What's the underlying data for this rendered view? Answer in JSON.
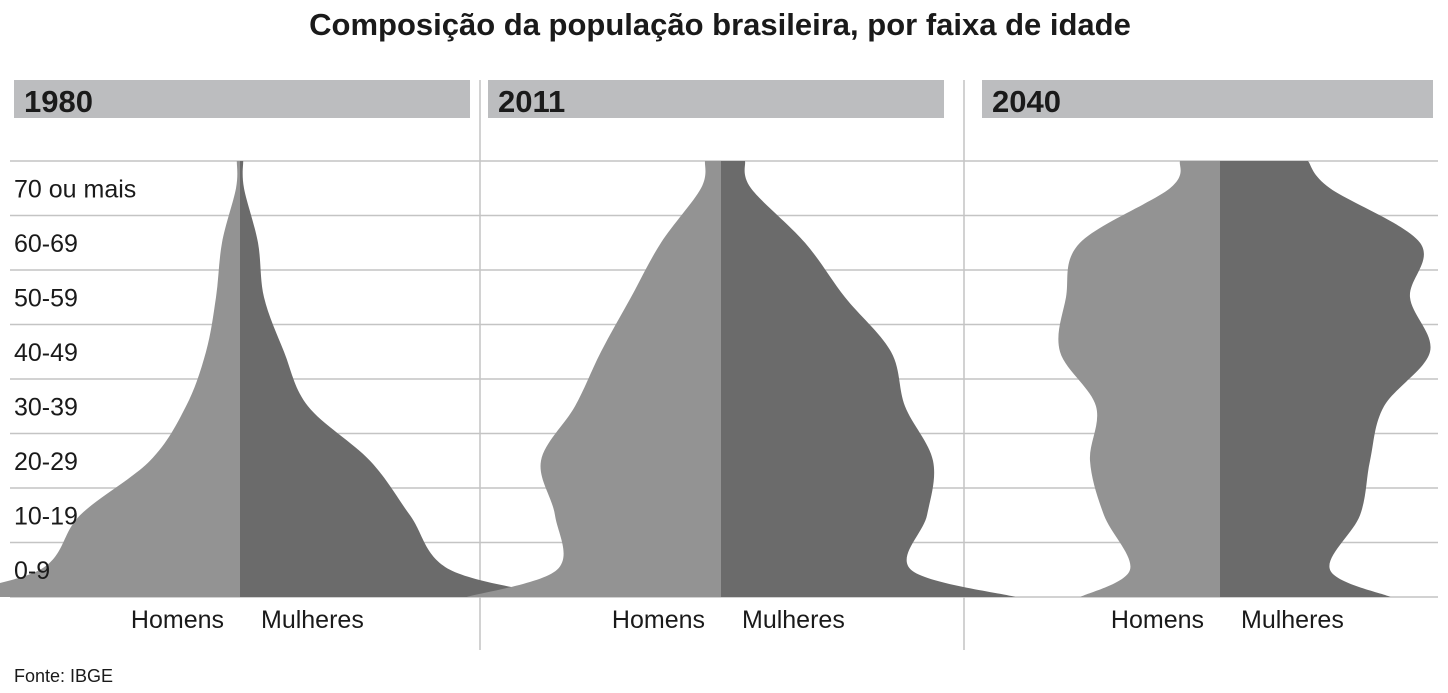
{
  "title": "Composição da população brasileira, por faixa de idade",
  "source": "Fonte: IBGE",
  "colors": {
    "men": "#939393",
    "women": "#6b6b6b",
    "header": "#bcbdbf",
    "grid": "#c4c4c4",
    "text": "#1a1a1a"
  },
  "chart_data": {
    "type": "area",
    "age_groups": [
      "0-9",
      "10-19",
      "20-29",
      "30-39",
      "40-49",
      "50-59",
      "60-69",
      "70 ou mais"
    ],
    "side_labels": {
      "left": "Homens",
      "right": "Mulheres"
    },
    "grid": true,
    "panels": [
      {
        "year": "1980",
        "series": [
          {
            "name": "Homens",
            "values": [
              100,
              80,
              45,
              27,
              17,
              12,
              9,
              2
            ]
          },
          {
            "name": "Mulheres",
            "values": [
              105,
              85,
              65,
              34,
              22,
              12,
              9,
              2
            ]
          }
        ]
      },
      {
        "year": "2011",
        "series": [
          {
            "name": "Homens",
            "values": [
              82,
              83,
              90,
              73,
              60,
              45,
              30,
              10
            ]
          },
          {
            "name": "Mulheres",
            "values": [
              95,
              103,
              106,
              92,
              85,
              62,
              42,
              15
            ]
          }
        ]
      },
      {
        "year": "2040",
        "series": [
          {
            "name": "Homens",
            "values": [
              45,
              58,
              65,
              62,
              80,
              77,
              70,
              25
            ]
          },
          {
            "name": "Mulheres",
            "values": [
              55,
              70,
              75,
              82,
              105,
              95,
              100,
              55
            ]
          }
        ]
      }
    ]
  }
}
